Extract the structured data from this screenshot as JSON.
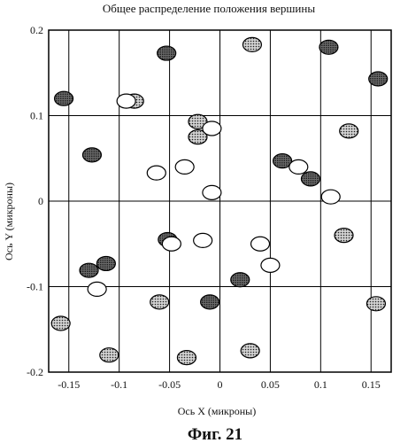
{
  "chart_data": {
    "type": "scatter",
    "title": "Общее распределение положения вершины",
    "xlabel": "Ось X (микроны)",
    "ylabel": "Ось Y (микроны)",
    "xlim": [
      -0.17,
      0.17
    ],
    "ylim": [
      -0.2,
      0.2
    ],
    "xticks": [
      -0.15,
      -0.1,
      -0.05,
      0,
      0.05,
      0.1,
      0.15
    ],
    "xtick_labels": [
      "-0.15",
      "-0.1",
      "-0.05",
      "0",
      "0.05",
      "0.1",
      "0.15"
    ],
    "yticks": [
      -0.2,
      -0.1,
      0,
      0.1,
      0.2
    ],
    "ytick_labels": [
      "-0.2",
      "-0.1",
      "0",
      "0.1",
      "0.2"
    ],
    "grid": true,
    "series": [
      {
        "marker": "hatched-dark",
        "color": "#555555",
        "points": [
          {
            "x": -0.155,
            "y": 0.12
          },
          {
            "x": -0.053,
            "y": 0.173
          },
          {
            "x": 0.108,
            "y": 0.18
          },
          {
            "x": 0.157,
            "y": 0.143
          },
          {
            "x": -0.127,
            "y": 0.054
          },
          {
            "x": 0.062,
            "y": 0.047
          },
          {
            "x": 0.09,
            "y": 0.026
          },
          {
            "x": -0.052,
            "y": -0.045
          },
          {
            "x": -0.113,
            "y": -0.073
          },
          {
            "x": -0.13,
            "y": -0.081
          },
          {
            "x": 0.02,
            "y": -0.092
          },
          {
            "x": -0.01,
            "y": -0.118
          }
        ]
      },
      {
        "marker": "dotted-light",
        "color": "#bbbbbb",
        "points": [
          {
            "x": 0.032,
            "y": 0.183
          },
          {
            "x": -0.085,
            "y": 0.117
          },
          {
            "x": -0.022,
            "y": 0.093
          },
          {
            "x": -0.022,
            "y": 0.075
          },
          {
            "x": 0.128,
            "y": 0.082
          },
          {
            "x": 0.123,
            "y": -0.04
          },
          {
            "x": -0.06,
            "y": -0.118
          },
          {
            "x": 0.155,
            "y": -0.12
          },
          {
            "x": -0.158,
            "y": -0.143
          },
          {
            "x": -0.11,
            "y": -0.18
          },
          {
            "x": -0.033,
            "y": -0.183
          },
          {
            "x": 0.03,
            "y": -0.175
          }
        ]
      },
      {
        "marker": "open",
        "color": "#ffffff",
        "points": [
          {
            "x": -0.093,
            "y": 0.117
          },
          {
            "x": -0.008,
            "y": 0.085
          },
          {
            "x": -0.035,
            "y": 0.04
          },
          {
            "x": -0.063,
            "y": 0.033
          },
          {
            "x": 0.078,
            "y": 0.04
          },
          {
            "x": -0.008,
            "y": 0.01
          },
          {
            "x": 0.11,
            "y": 0.005
          },
          {
            "x": -0.048,
            "y": -0.05
          },
          {
            "x": -0.017,
            "y": -0.046
          },
          {
            "x": 0.04,
            "y": -0.05
          },
          {
            "x": 0.05,
            "y": -0.075
          },
          {
            "x": -0.122,
            "y": -0.103
          }
        ]
      }
    ]
  },
  "figure_label": "Фиг. 21"
}
